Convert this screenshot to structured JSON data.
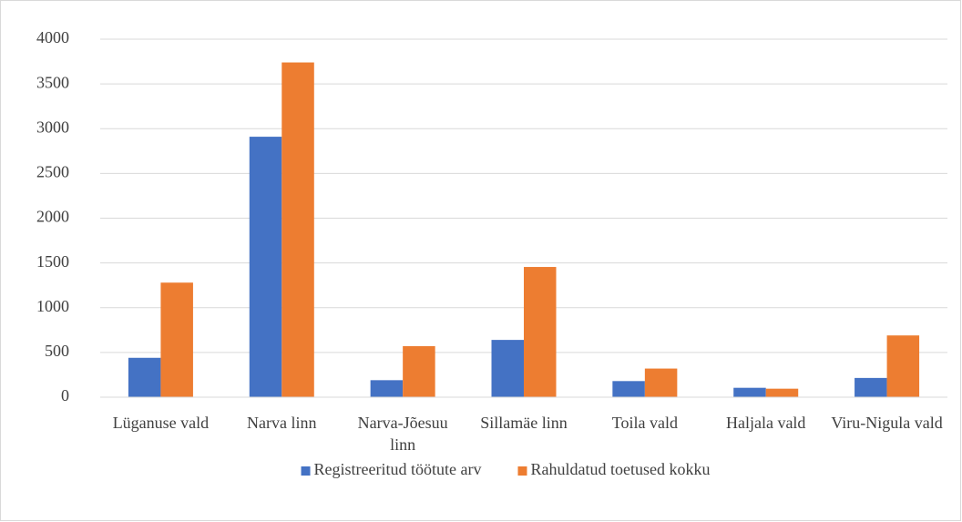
{
  "chart_data": {
    "type": "bar",
    "categories": [
      "Lüganuse vald",
      "Narva linn",
      "Narva-Jõesuu linn",
      "Sillamäe linn",
      "Toila vald",
      "Haljala vald",
      "Viru-Nigula vald"
    ],
    "series": [
      {
        "name": "Registreeritud töötute arv",
        "color": "#4472c4",
        "values": [
          440,
          2910,
          190,
          640,
          180,
          105,
          215
        ]
      },
      {
        "name": "Rahuldatud toetused kokku",
        "color": "#ed7d31",
        "values": [
          1280,
          3740,
          570,
          1455,
          320,
          95,
          690
        ]
      }
    ],
    "ylim": [
      0,
      4000
    ],
    "yticks": [
      0,
      500,
      1000,
      1500,
      2000,
      2500,
      3000,
      3500,
      4000
    ],
    "grid": true,
    "legend": "bottom"
  }
}
